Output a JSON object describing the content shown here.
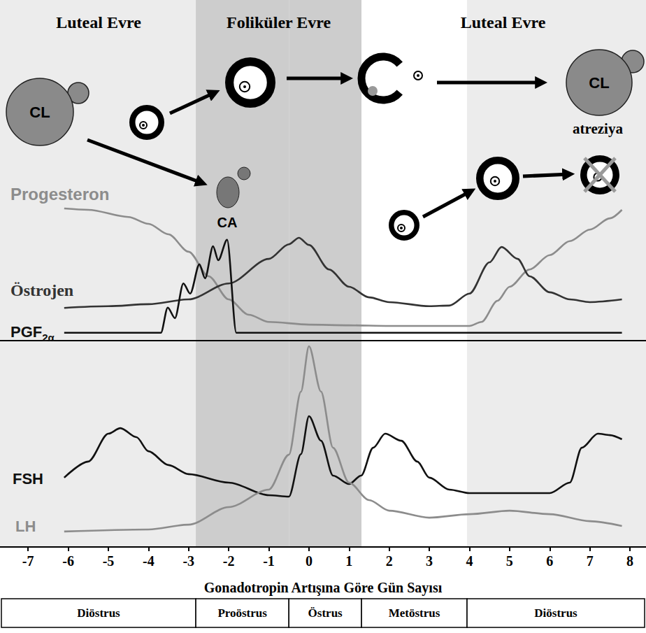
{
  "chart_data": [
    {
      "type": "line",
      "xlim": [
        -7.7,
        8.4
      ],
      "ylim": [
        0,
        100
      ],
      "tick_labels": false,
      "series": [
        {
          "name": "Progesteron",
          "color": "#8c8c8c",
          "line_style": "solid",
          "x": [
            -6.1,
            -5.5,
            -4.5,
            -4,
            -3.5,
            -3,
            -2.5,
            -2,
            -1.5,
            -1,
            0,
            1,
            2,
            3,
            4,
            4.3,
            4.7,
            5,
            5.5,
            6,
            6.5,
            7,
            7.5,
            7.8
          ],
          "values": [
            38.8,
            38.4,
            36.3,
            34.3,
            31.2,
            26.1,
            18.9,
            12.1,
            7.6,
            5.5,
            4.7,
            4.5,
            4.3,
            4.3,
            4.3,
            5.5,
            11.7,
            15.8,
            20.9,
            25.1,
            29.2,
            32.6,
            35.9,
            38.4
          ]
        },
        {
          "name": "Östrojen",
          "color": "#333333",
          "line_style": "solid",
          "x": [
            -6.1,
            -5,
            -4,
            -3,
            -2,
            -1,
            -0.5,
            -0.25,
            0,
            0.5,
            1,
            1.5,
            2,
            3,
            3.5,
            4,
            4.5,
            4.8,
            5.2,
            5.5,
            6,
            6.5,
            7,
            7.8
          ],
          "values": [
            9.6,
            10.1,
            10.7,
            12.1,
            16.8,
            24,
            28.3,
            30.2,
            28.1,
            20.9,
            15.8,
            12.7,
            11.3,
            10.1,
            10.3,
            13.8,
            23,
            27.5,
            24,
            18.9,
            14.2,
            12.1,
            11.3,
            12.1
          ]
        },
        {
          "name": "PGF2α",
          "color": "#111111",
          "line_style": "solid",
          "x": [
            -6.1,
            -3.69,
            -3.52,
            -3.34,
            -3.13,
            -2.96,
            -2.73,
            -2.59,
            -2.39,
            -2.26,
            -2.04,
            -1.81,
            7.8
          ],
          "values": [
            2.3,
            2.3,
            9.7,
            6.6,
            16.8,
            13.8,
            22.4,
            18.3,
            27.7,
            23.6,
            29.6,
            2.3,
            2.3
          ]
        }
      ]
    },
    {
      "type": "line",
      "xlim": [
        -7.7,
        8.4
      ],
      "ylim": [
        0,
        100
      ],
      "xticks": [
        -7,
        -6,
        -5,
        -4,
        -3,
        -2,
        -1,
        0,
        1,
        2,
        3,
        4,
        5,
        6,
        7,
        8
      ],
      "xlabel": "Gonadotropin Artışına Göre Gün Sayısı",
      "tick_labels": "x",
      "series": [
        {
          "name": "FSH",
          "color": "#111111",
          "line_style": "solid",
          "x": [
            -6.1,
            -5.5,
            -5,
            -4.7,
            -4.3,
            -4,
            -3.5,
            -3,
            -2,
            -1,
            -0.5,
            -0.2,
            0,
            0.3,
            0.6,
            1,
            1.3,
            1.6,
            1.9,
            2.3,
            2.7,
            3,
            3.5,
            4,
            5,
            6,
            6.5,
            6.8,
            7.2,
            7.5,
            7.8
          ],
          "values": [
            33.6,
            41.4,
            54.9,
            57.6,
            53.2,
            46.4,
            39.7,
            35.3,
            31.2,
            25.1,
            24.4,
            45,
            63.4,
            51.5,
            34.6,
            30.5,
            34.6,
            48.1,
            54.9,
            51.5,
            41.4,
            33.6,
            27.8,
            26.1,
            26.1,
            26.1,
            31.2,
            48.1,
            54.9,
            54.2,
            52.2
          ]
        },
        {
          "name": "LH",
          "color": "#8c8c8c",
          "line_style": "solid",
          "x": [
            -6.1,
            -4,
            -3,
            -2,
            -1,
            -0.5,
            -0.2,
            0,
            0.3,
            0.6,
            1,
            1.5,
            2,
            3,
            4,
            5,
            6,
            7,
            7.8
          ],
          "values": [
            7.5,
            8.5,
            10.8,
            19.3,
            27.8,
            44.7,
            75.3,
            97.3,
            75.3,
            48.1,
            31.2,
            22.7,
            17.6,
            14.2,
            15.9,
            17.6,
            15.9,
            12.5,
            10.2
          ]
        }
      ]
    }
  ],
  "phases": [
    {
      "label": "Luteal Evre",
      "start": -7.7,
      "end": -2.82
    },
    {
      "label": "Foliküler Evre",
      "start": -2.82,
      "end": 1.31
    },
    {
      "label": "Luteal Evre",
      "start": 1.31,
      "end": 8.4
    }
  ],
  "stages": [
    {
      "label": "Diöstrus",
      "start": -7.7,
      "end": -2.82,
      "color": "#ececec"
    },
    {
      "label": "Proöstrus",
      "start": -2.82,
      "end": -0.5,
      "color": "#cdcdcd"
    },
    {
      "label": "Östrus",
      "start": -0.5,
      "end": 1.31,
      "color": "#cdcdcd"
    },
    {
      "label": "Metöstrus",
      "start": 1.31,
      "end": 3.94,
      "color": "#ffffff"
    },
    {
      "label": "Diöstrus",
      "start": 3.94,
      "end": 8.4,
      "color": "#ececec"
    }
  ],
  "diagram": {
    "corpus_luteum": "CL",
    "corpus_albicans": "CA",
    "atresia": "atreziya"
  }
}
